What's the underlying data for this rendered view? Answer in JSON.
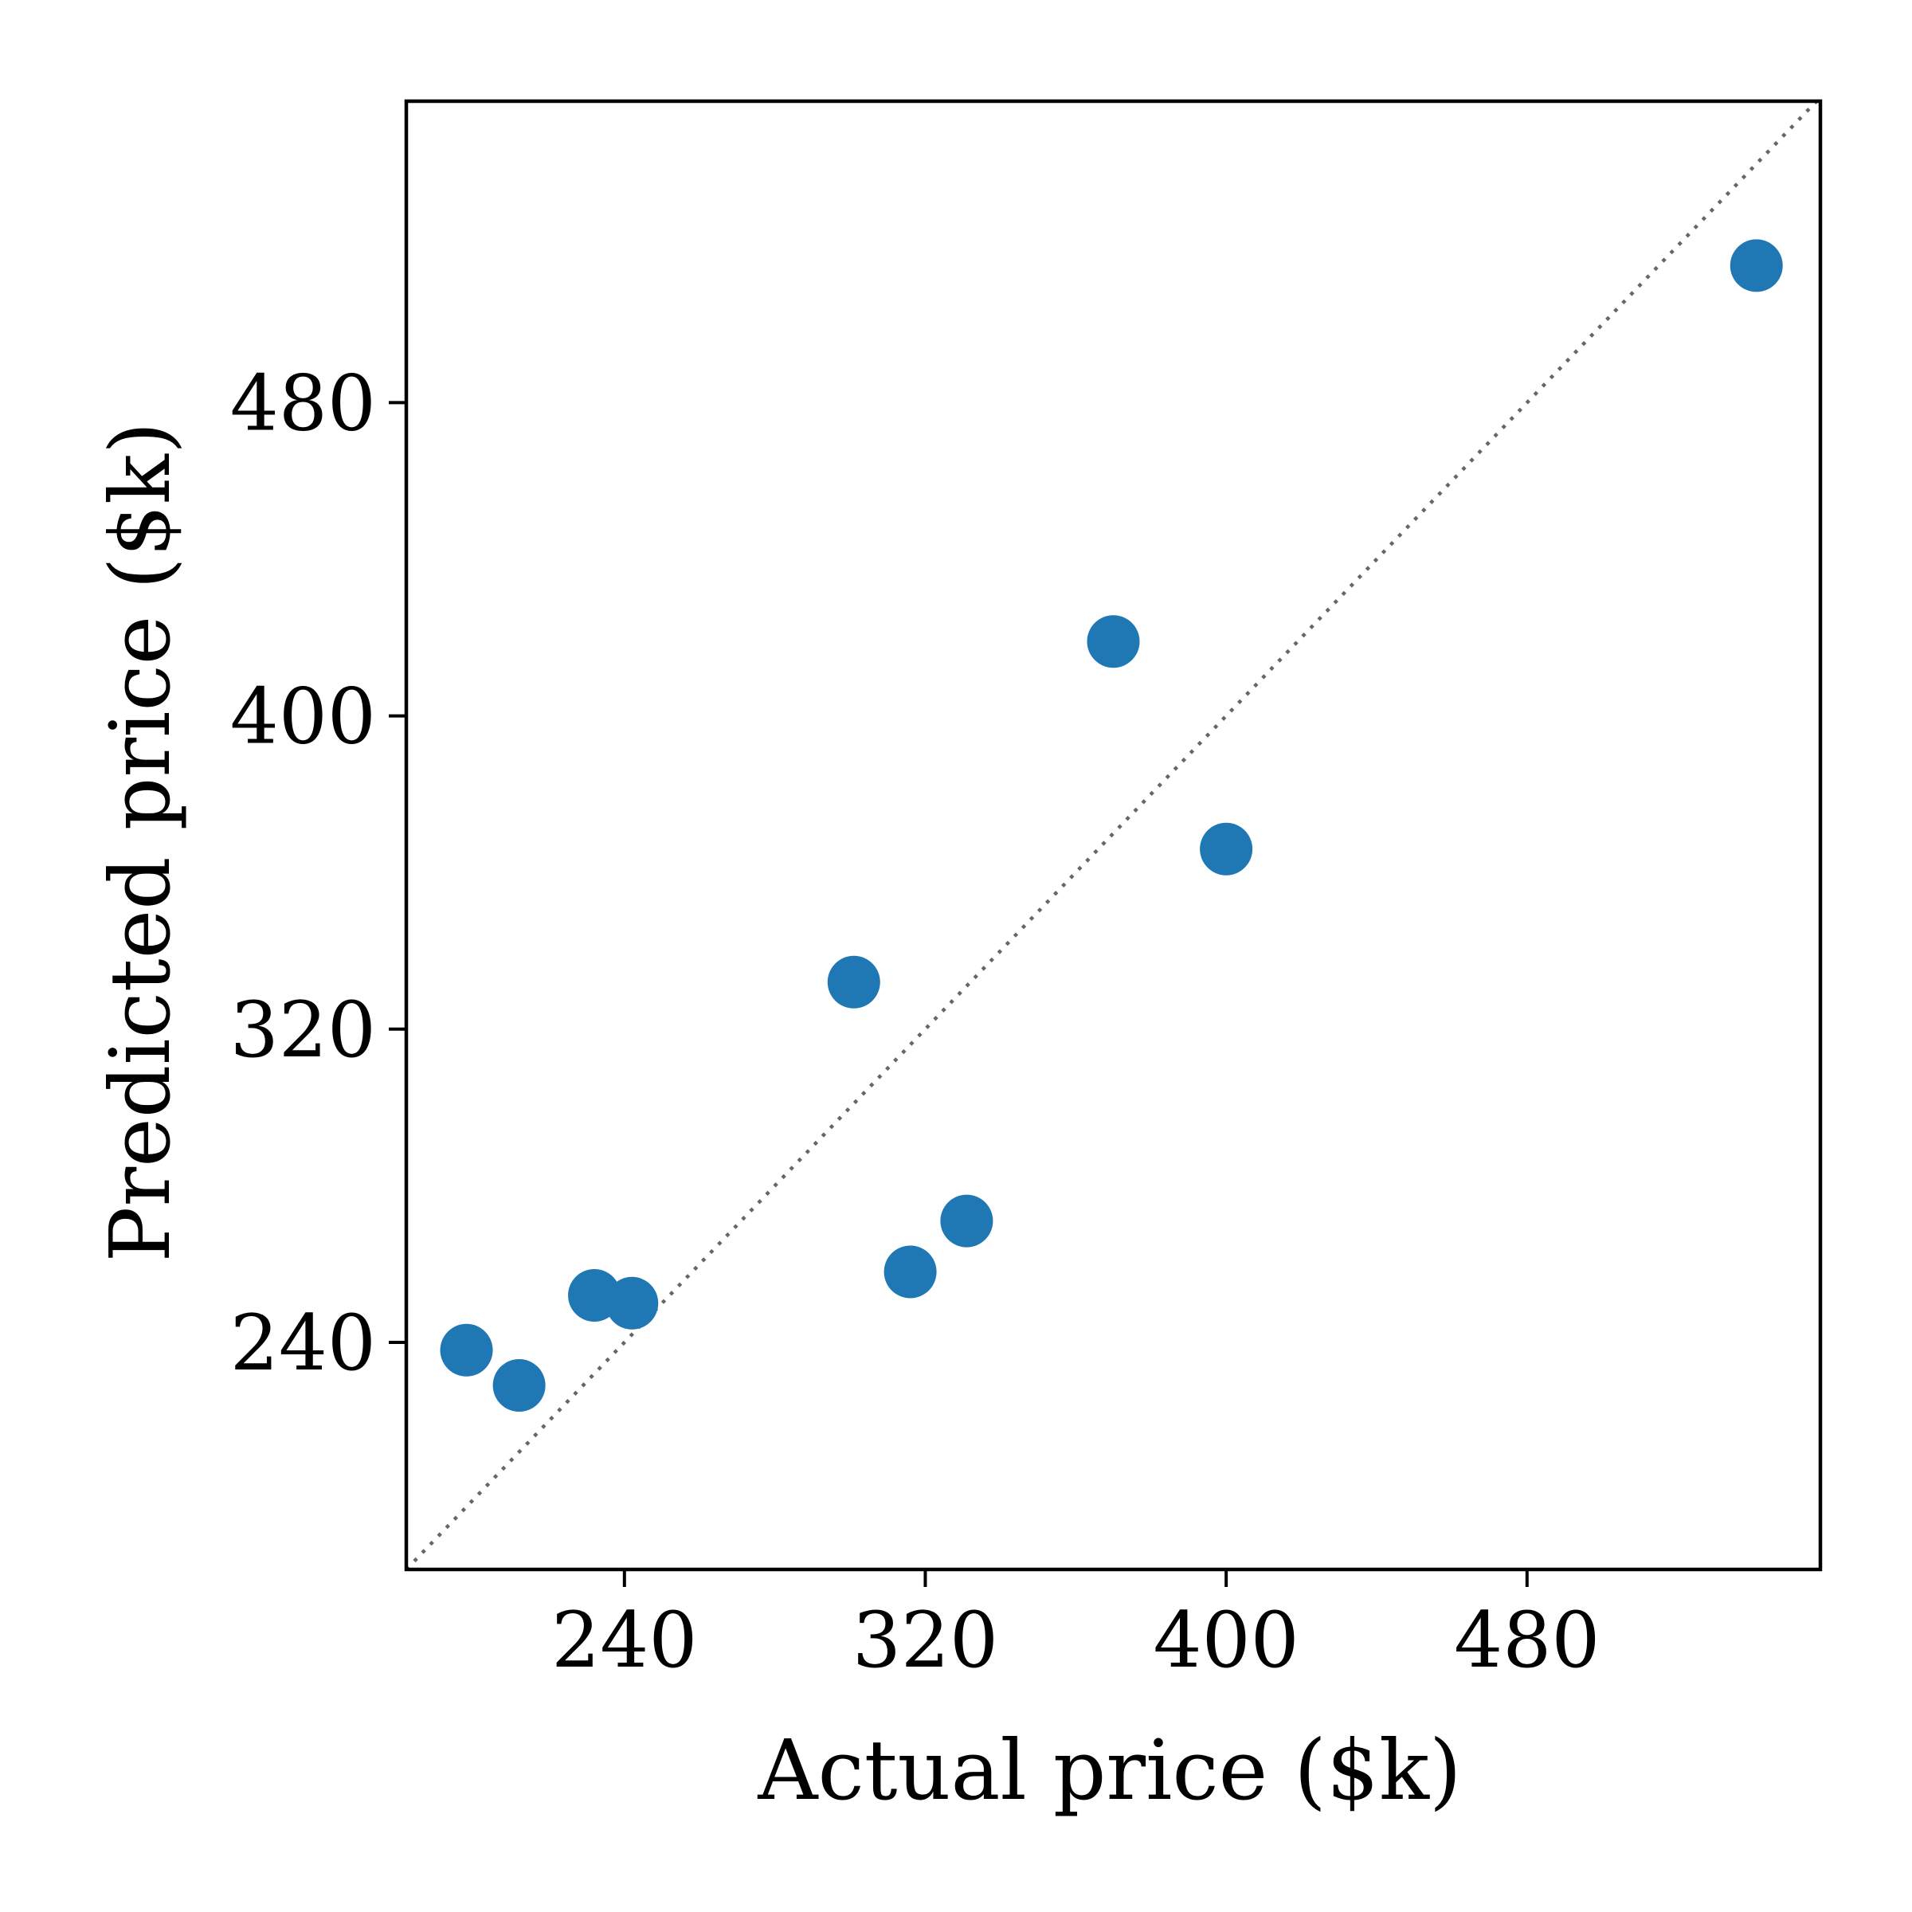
{
  "chart_data": {
    "type": "scatter",
    "title": "",
    "xlabel": "Actual price ($k)",
    "ylabel": "Predicted price ($k)",
    "xlim": [
      182,
      558
    ],
    "ylim": [
      182,
      557
    ],
    "xticks": [
      240,
      320,
      400,
      480
    ],
    "yticks": [
      240,
      320,
      400,
      480
    ],
    "grid": false,
    "reference_line": {
      "style": "dotted",
      "color": "#666666",
      "slope": 1,
      "intercept": 0
    },
    "points": [
      {
        "x": 198,
        "y": 238
      },
      {
        "x": 212,
        "y": 229
      },
      {
        "x": 232,
        "y": 252
      },
      {
        "x": 242,
        "y": 250
      },
      {
        "x": 301,
        "y": 332
      },
      {
        "x": 316,
        "y": 258
      },
      {
        "x": 331,
        "y": 271
      },
      {
        "x": 370,
        "y": 419
      },
      {
        "x": 400,
        "y": 366
      },
      {
        "x": 541,
        "y": 515
      }
    ],
    "marker_color": "#1f77b4"
  }
}
